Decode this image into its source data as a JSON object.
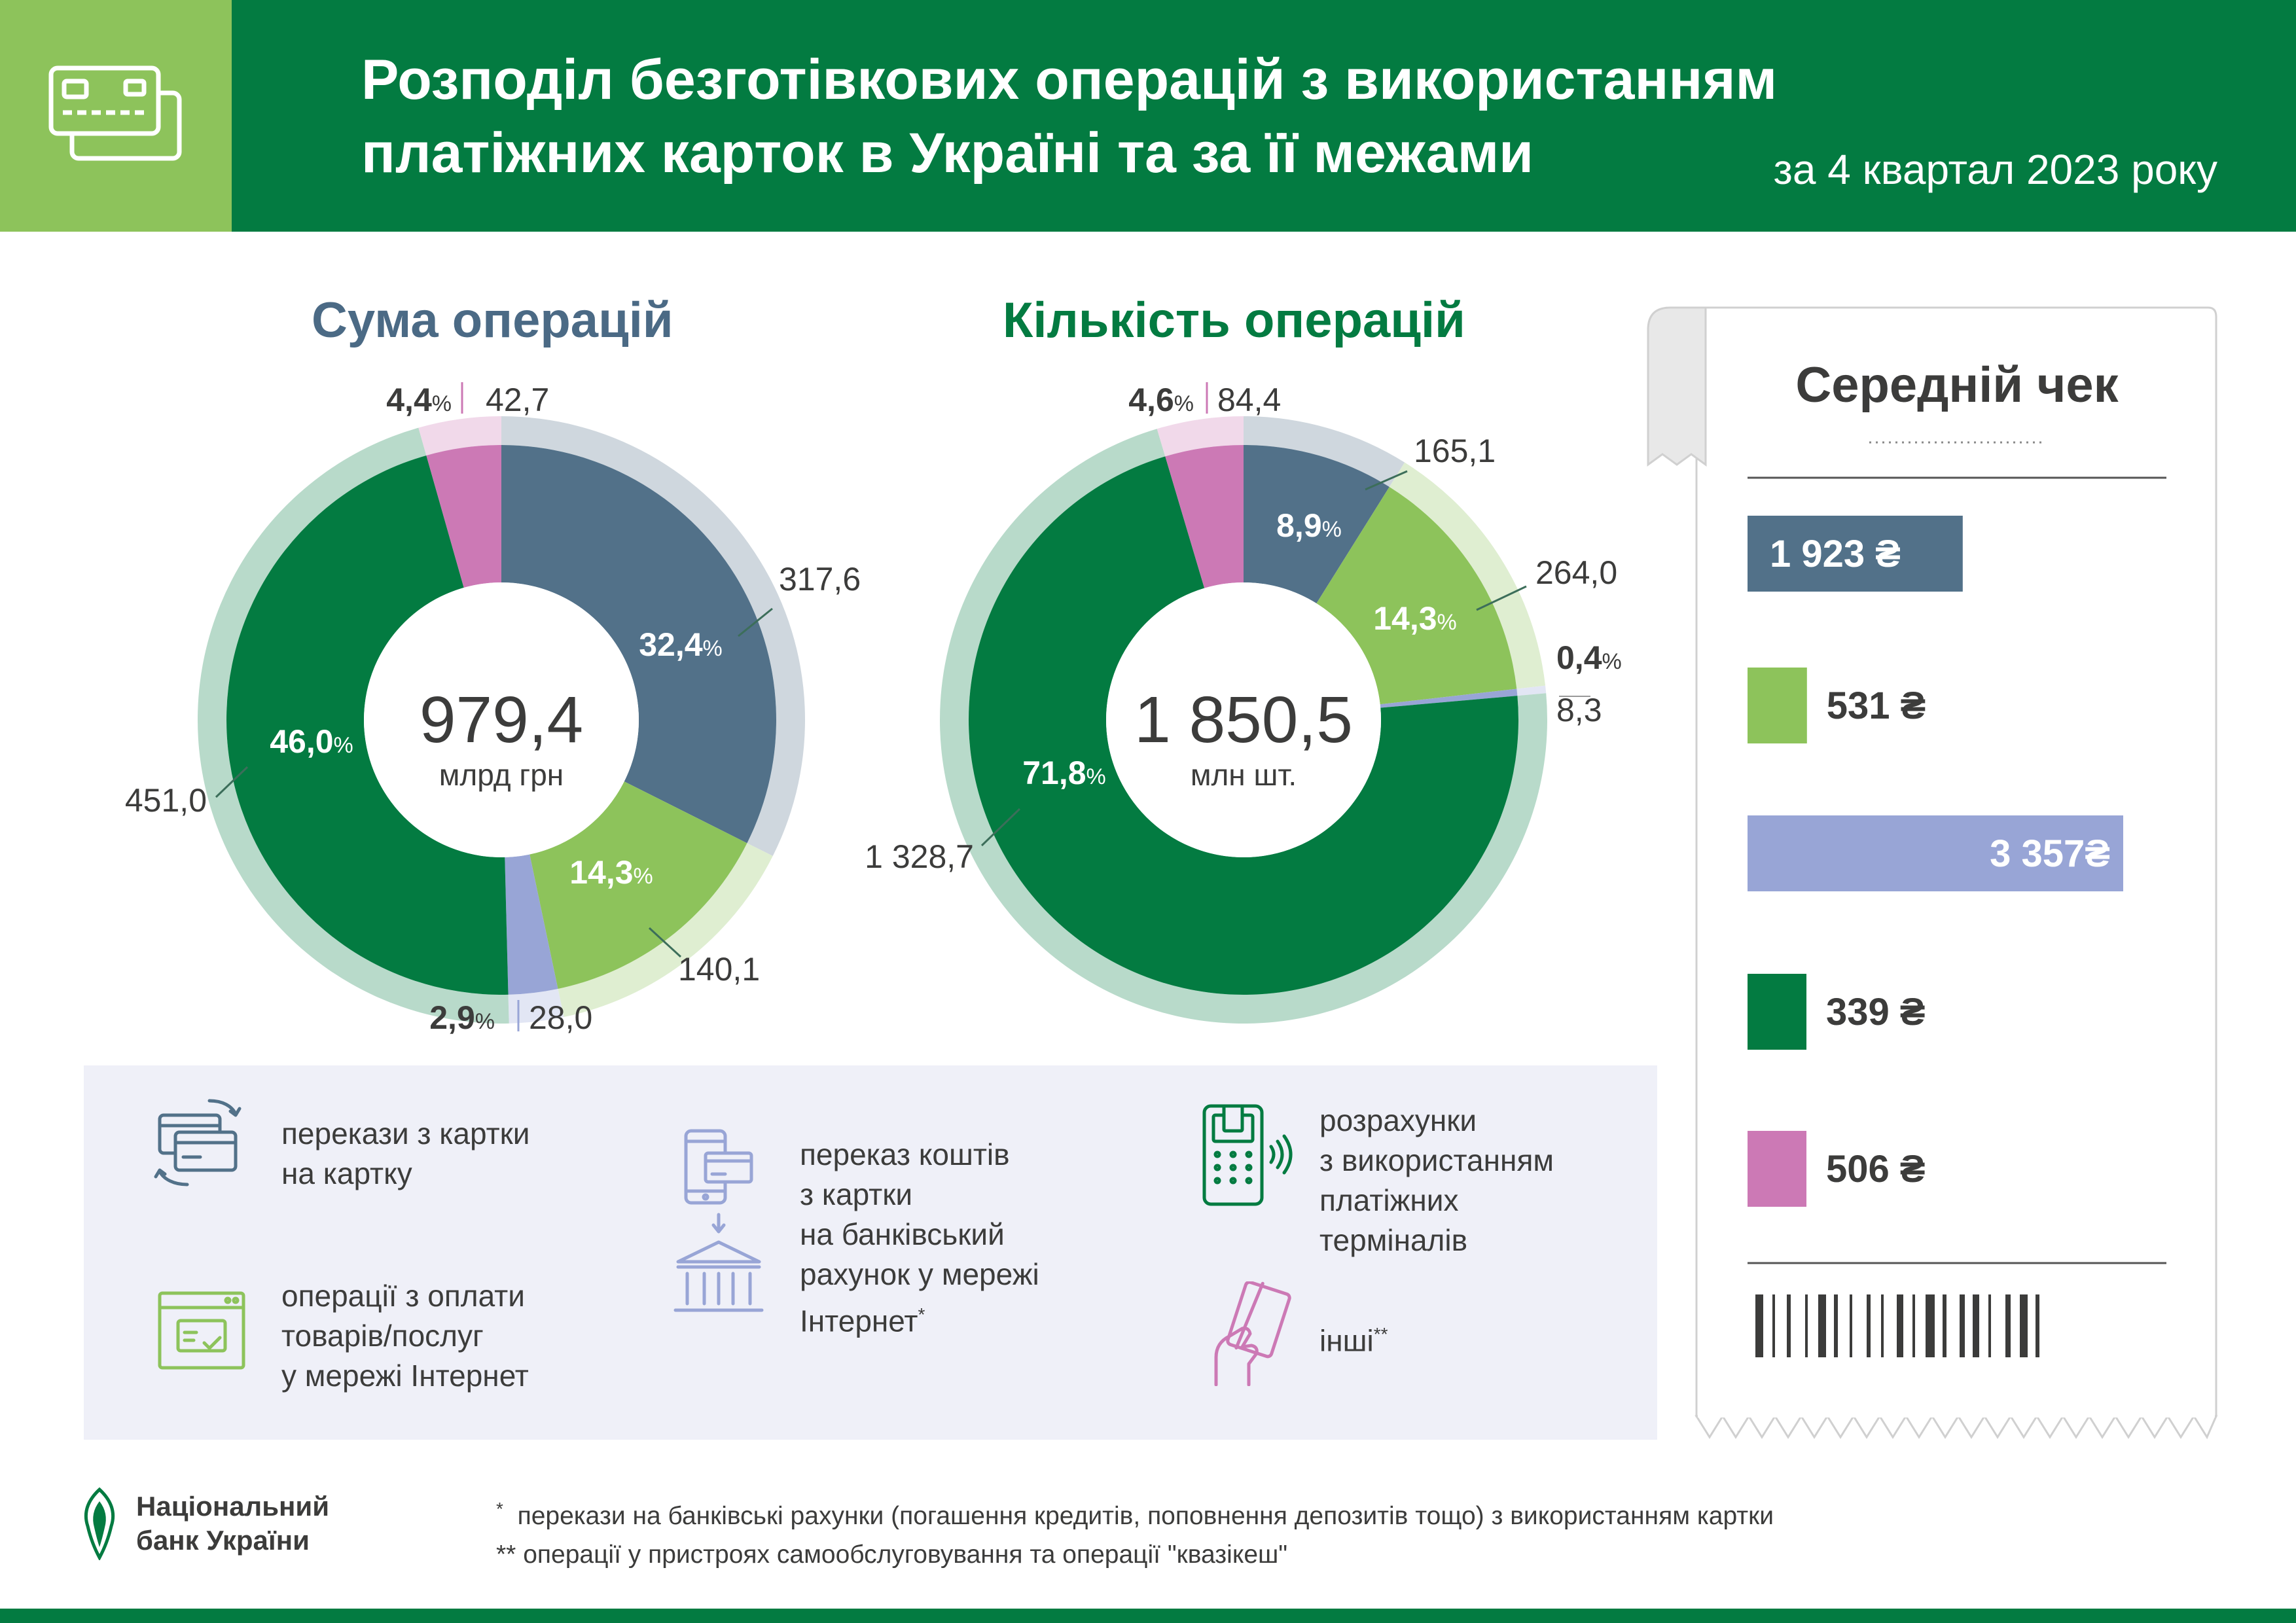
{
  "header": {
    "title_line1": "Розподіл безготівкових операцій з використанням",
    "title_line2": "платіжних карток в Україні та за її межами",
    "period": "за 4 квартал 2023 року",
    "icon": "credit-card-icon"
  },
  "colors": {
    "card_to_card": "#527189",
    "internet_payments": "#8dc35b",
    "bank_account_transfer": "#98a5d6",
    "terminals": "#037b41",
    "other": "#cc79b5",
    "header_green": "#037b41",
    "amount_title": "#4b6a85"
  },
  "chart_data": [
    {
      "type": "pie",
      "title": "Сума операцій",
      "center_value": "979,4",
      "center_unit": "млрд грн",
      "slices": [
        {
          "category": "перекази з картки на картку",
          "percent": 32.4,
          "percent_label": "32,4",
          "value": 317.6,
          "value_label": "317,6"
        },
        {
          "category": "операції з оплати товарів/послуг у мережі Інтернет",
          "percent": 14.3,
          "percent_label": "14,3",
          "value": 140.1,
          "value_label": "140,1"
        },
        {
          "category": "переказ коштів з картки на банківський рахунок у мережі Інтернет*",
          "percent": 2.9,
          "percent_label": "2,9",
          "value": 28.0,
          "value_label": "28,0"
        },
        {
          "category": "розрахунки з використанням платіжних терміналів",
          "percent": 46.0,
          "percent_label": "46,0",
          "value": 451.0,
          "value_label": "451,0"
        },
        {
          "category": "інші**",
          "percent": 4.4,
          "percent_label": "4,4",
          "value": 42.7,
          "value_label": "42,7"
        }
      ]
    },
    {
      "type": "pie",
      "title": "Кількість операцій",
      "center_value": "1 850,5",
      "center_unit": "млн шт.",
      "slices": [
        {
          "category": "перекази з картки на картку",
          "percent": 8.9,
          "percent_label": "8,9",
          "value": 165.1,
          "value_label": "165,1"
        },
        {
          "category": "операції з оплати товарів/послуг у мережі Інтернет",
          "percent": 14.3,
          "percent_label": "14,3",
          "value": 264.0,
          "value_label": "264,0"
        },
        {
          "category": "переказ коштів з картки на банківський рахунок у мережі Інтернет*",
          "percent": 0.4,
          "percent_label": "0,4",
          "value": 8.3,
          "value_label": "8,3"
        },
        {
          "category": "розрахунки з використанням платіжних терміналів",
          "percent": 71.8,
          "percent_label": "71,8",
          "value": 1328.7,
          "value_label": "1 328,7"
        },
        {
          "category": "інші**",
          "percent": 4.6,
          "percent_label": "4,6",
          "value": 84.4,
          "value_label": "84,4"
        }
      ]
    },
    {
      "type": "bar",
      "title": "Середній чек",
      "categories": [
        "перекази з картки на картку",
        "операції з оплати товарів/послуг у мережі Інтернет",
        "переказ коштів з картки на банківський рахунок у мережі Інтернет*",
        "розрахунки з використанням платіжних терміналів",
        "інші**"
      ],
      "values": [
        1923,
        531,
        3357,
        339,
        506
      ],
      "value_labels": [
        "1 923 ₴",
        "531 ₴",
        "3 357₴",
        "339 ₴",
        "506 ₴"
      ]
    }
  ],
  "legend": {
    "card_to_card": [
      "перекази з картки",
      "на картку"
    ],
    "internet_payments": [
      "операції з оплати",
      "товарів/послуг",
      "у мережі Інтернет"
    ],
    "bank_transfer": [
      "переказ коштів",
      "з картки",
      "на банківський",
      "рахунок у мережі",
      "Інтернет"
    ],
    "bank_transfer_mark": "*",
    "terminals": [
      "розрахунки",
      "з використанням",
      "платіжних",
      "терміналів"
    ],
    "other": "інші",
    "other_mark": "**"
  },
  "percent_sign": "%",
  "logo": {
    "line1": "Національний",
    "line2": "банк України"
  },
  "notes": {
    "note1_mark": "*",
    "note1": "перекази на банківські рахунки (погашення кредитів, поповнення депозитів тощо) з використанням картки",
    "note2_mark": "**",
    "note2": "операції у пристроях самообслуговування та операції \"квазікеш\""
  }
}
